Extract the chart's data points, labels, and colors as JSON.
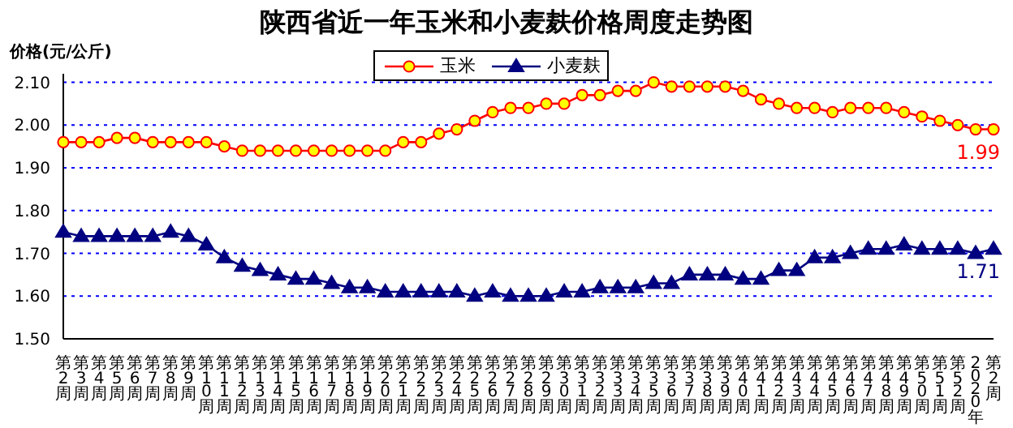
{
  "chart_data": {
    "type": "line",
    "title": "陕西省近一年玉米和小麦麸价格周度走势图",
    "ylabel": "价格(元/公斤)",
    "categories": [
      "第2周",
      "第3周",
      "第4周",
      "第5周",
      "第6周",
      "第7周",
      "第8周",
      "第9周",
      "第10周",
      "第11周",
      "第12周",
      "第13周",
      "第14周",
      "第15周",
      "第16周",
      "第17周",
      "第18周",
      "第19周",
      "第20周",
      "第21周",
      "第22周",
      "第23周",
      "第24周",
      "第25周",
      "第26周",
      "第27周",
      "第28周",
      "第29周",
      "第30周",
      "第31周",
      "第32周",
      "第33周",
      "第34周",
      "第35周",
      "第36周",
      "第37周",
      "第38周",
      "第39周",
      "第40周",
      "第41周",
      "第42周",
      "第43周",
      "第44周",
      "第45周",
      "第46周",
      "第47周",
      "第48周",
      "第49周",
      "第50周",
      "第51周",
      "第52周",
      "2020年",
      "第2周"
    ],
    "series": [
      {
        "name": "玉米",
        "color": "#ff0000",
        "marker": "circle",
        "values": [
          1.96,
          1.96,
          1.96,
          1.97,
          1.97,
          1.96,
          1.96,
          1.96,
          1.96,
          1.95,
          1.94,
          1.94,
          1.94,
          1.94,
          1.94,
          1.94,
          1.94,
          1.94,
          1.94,
          1.96,
          1.96,
          1.98,
          1.99,
          2.01,
          2.03,
          2.04,
          2.04,
          2.05,
          2.05,
          2.07,
          2.07,
          2.08,
          2.08,
          2.1,
          2.09,
          2.09,
          2.09,
          2.09,
          2.08,
          2.06,
          2.05,
          2.04,
          2.04,
          2.03,
          2.04,
          2.04,
          2.04,
          2.03,
          2.02,
          2.01,
          2.0,
          1.99,
          1.99
        ],
        "value_labels": [
          null,
          null,
          null,
          null,
          null,
          null,
          null,
          null,
          null,
          null,
          null,
          null,
          null,
          null,
          null,
          null,
          null,
          null,
          null,
          null,
          null,
          null,
          null,
          null,
          null,
          null,
          null,
          null,
          null,
          null,
          null,
          null,
          null,
          null,
          null,
          null,
          null,
          null,
          null,
          null,
          null,
          null,
          null,
          null,
          null,
          null,
          null,
          null,
          null,
          null,
          null,
          null,
          "1.99"
        ]
      },
      {
        "name": "小麦麸",
        "color": "#000080",
        "marker": "triangle",
        "values": [
          1.75,
          1.74,
          1.74,
          1.74,
          1.74,
          1.74,
          1.75,
          1.74,
          1.72,
          1.69,
          1.67,
          1.66,
          1.65,
          1.64,
          1.64,
          1.63,
          1.62,
          1.62,
          1.61,
          1.61,
          1.61,
          1.61,
          1.61,
          1.6,
          1.61,
          1.6,
          1.6,
          1.6,
          1.61,
          1.61,
          1.62,
          1.62,
          1.62,
          1.63,
          1.63,
          1.65,
          1.65,
          1.65,
          1.64,
          1.64,
          1.66,
          1.66,
          1.69,
          1.69,
          1.7,
          1.71,
          1.71,
          1.72,
          1.71,
          1.71,
          1.71,
          1.7,
          1.71
        ],
        "value_labels": [
          null,
          null,
          null,
          null,
          null,
          null,
          null,
          null,
          null,
          null,
          null,
          null,
          null,
          null,
          null,
          null,
          null,
          null,
          null,
          null,
          null,
          null,
          null,
          null,
          null,
          null,
          null,
          null,
          null,
          null,
          null,
          null,
          null,
          null,
          null,
          null,
          null,
          null,
          null,
          null,
          null,
          null,
          null,
          null,
          null,
          null,
          null,
          null,
          null,
          null,
          null,
          null,
          "1.71"
        ]
      }
    ],
    "ylim": [
      1.5,
      2.12
    ],
    "yticks": [
      {
        "value": 1.5,
        "label": "1.50"
      },
      {
        "value": 1.6,
        "label": "1.60"
      },
      {
        "value": 1.7,
        "label": "1.70"
      },
      {
        "value": 1.8,
        "label": "1.80"
      },
      {
        "value": 1.9,
        "label": "1.90"
      },
      {
        "value": 2.0,
        "label": "2.00"
      },
      {
        "value": 2.1,
        "label": "2.10"
      }
    ],
    "grid": "y",
    "legend": "top",
    "line_style": "solid"
  }
}
